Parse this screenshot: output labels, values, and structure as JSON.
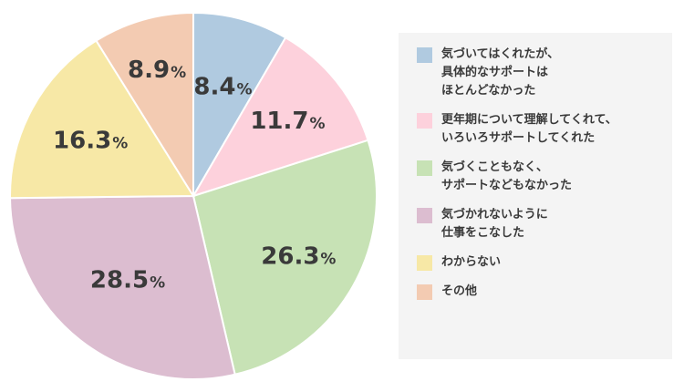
{
  "chart_data": {
    "type": "pie",
    "unit": "%",
    "slices": [
      {
        "label": "気づいてはくれたが、\n具体的なサポートは\nほとんどなかった",
        "value": 8.4,
        "display": "8.4",
        "color": "#b0cae0"
      },
      {
        "label": "更年期について理解してくれて、\nいろいろサポートしてくれた",
        "value": 11.7,
        "display": "11.7",
        "color": "#fdd1dc"
      },
      {
        "label": "気づくこともなく、\nサポートなどもなかった",
        "value": 26.3,
        "display": "26.3",
        "color": "#c7e2b5"
      },
      {
        "label": "気づかれないように\n仕事をこなした",
        "value": 28.5,
        "display": "28.5",
        "color": "#dcbdd0"
      },
      {
        "label": "わからない",
        "value": 16.3,
        "display": "16.3",
        "color": "#f7e8a6"
      },
      {
        "label": "その他",
        "value": 8.9,
        "display": "8.9",
        "color": "#f3cbb2"
      }
    ]
  }
}
